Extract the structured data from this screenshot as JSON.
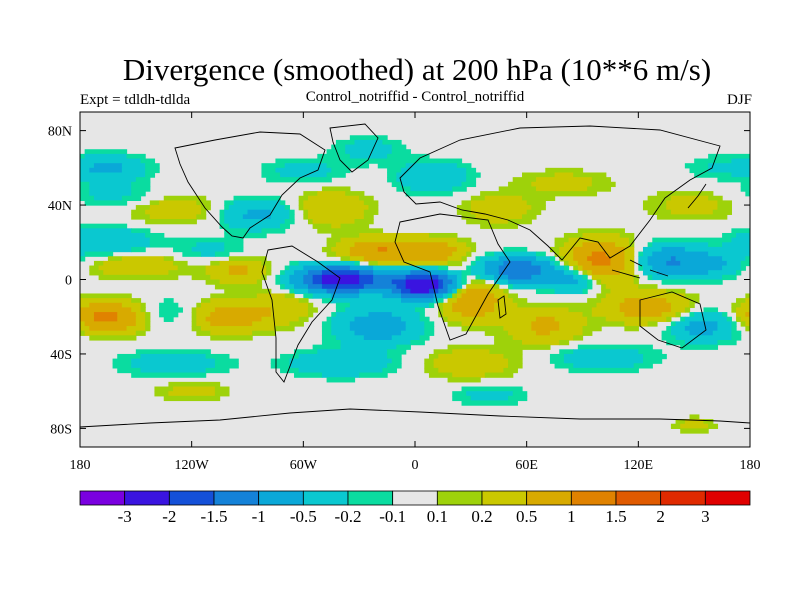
{
  "chart_data": {
    "type": "heatmap",
    "title": "Divergence (smoothed) at 200 hPa (10**6 m/s)",
    "left_label": "Expt = tdldh-tdlda",
    "center_label": "Control_notriffid - Control_notriffid",
    "right_label": "DJF",
    "xlim": [
      -180,
      180
    ],
    "ylim": [
      -90,
      90
    ],
    "x_ticks": [
      {
        "value": -180,
        "label": "180"
      },
      {
        "value": -120,
        "label": "120W"
      },
      {
        "value": -60,
        "label": "60W"
      },
      {
        "value": 0,
        "label": "0"
      },
      {
        "value": 60,
        "label": "60E"
      },
      {
        "value": 120,
        "label": "120E"
      },
      {
        "value": 180,
        "label": "180"
      }
    ],
    "y_ticks": [
      {
        "value": 80,
        "label": "80N"
      },
      {
        "value": 40,
        "label": "40N"
      },
      {
        "value": 0,
        "label": "0"
      },
      {
        "value": -40,
        "label": "40S"
      },
      {
        "value": -80,
        "label": "80S"
      }
    ],
    "colorbar": {
      "colors": [
        "#7a00e0",
        "#3a14e0",
        "#1450d8",
        "#1482d8",
        "#0aa8d8",
        "#0ac8d0",
        "#0adca0",
        "#e6e6e6",
        "#9ed20a",
        "#cac800",
        "#d8aa00",
        "#e08200",
        "#e05a00",
        "#e02a00",
        "#e00000"
      ],
      "levels": [
        "-3",
        "-2",
        "-1.5",
        "-1",
        "-0.5",
        "-0.2",
        "-0.1",
        "0.1",
        "0.2",
        "0.5",
        "1",
        "1.5",
        "2",
        "3"
      ]
    },
    "anomalies": [
      {
        "lon": -165,
        "lat": 60,
        "value": -0.6,
        "sx": 14,
        "sy": 5
      },
      {
        "lon": -160,
        "lat": 45,
        "value": -0.3,
        "sx": 20,
        "sy": 5
      },
      {
        "lon": -130,
        "lat": 38,
        "value": 0.4,
        "sx": 18,
        "sy": 6
      },
      {
        "lon": -85,
        "lat": 35,
        "value": -0.6,
        "sx": 15,
        "sy": 6
      },
      {
        "lon": -45,
        "lat": 38,
        "value": 0.5,
        "sx": 14,
        "sy": 7
      },
      {
        "lon": -60,
        "lat": 58,
        "value": -0.3,
        "sx": 16,
        "sy": 5
      },
      {
        "lon": -25,
        "lat": 70,
        "value": -0.3,
        "sx": 14,
        "sy": 5
      },
      {
        "lon": 10,
        "lat": 55,
        "value": -0.5,
        "sx": 14,
        "sy": 6
      },
      {
        "lon": 45,
        "lat": 38,
        "value": 0.4,
        "sx": 14,
        "sy": 6
      },
      {
        "lon": 80,
        "lat": 52,
        "value": 0.3,
        "sx": 18,
        "sy": 5
      },
      {
        "lon": 150,
        "lat": 40,
        "value": 0.3,
        "sx": 18,
        "sy": 6
      },
      {
        "lon": 160,
        "lat": 60,
        "value": -0.2,
        "sx": 12,
        "sy": 5
      },
      {
        "lon": -165,
        "lat": 20,
        "value": -0.5,
        "sx": 18,
        "sy": 6
      },
      {
        "lon": -150,
        "lat": 8,
        "value": 0.5,
        "sx": 18,
        "sy": 5
      },
      {
        "lon": -110,
        "lat": 15,
        "value": -0.3,
        "sx": 14,
        "sy": 5
      },
      {
        "lon": -95,
        "lat": 5,
        "value": 0.6,
        "sx": 12,
        "sy": 5
      },
      {
        "lon": -40,
        "lat": 0,
        "value": -2.5,
        "sx": 16,
        "sy": 5
      },
      {
        "lon": 5,
        "lat": -3,
        "value": -2.8,
        "sx": 12,
        "sy": 5
      },
      {
        "lon": -20,
        "lat": 15,
        "value": 1.0,
        "sx": 14,
        "sy": 5
      },
      {
        "lon": 10,
        "lat": 15,
        "value": 0.8,
        "sx": 12,
        "sy": 5
      },
      {
        "lon": 55,
        "lat": 5,
        "value": -1.5,
        "sx": 14,
        "sy": 5
      },
      {
        "lon": 85,
        "lat": 0,
        "value": -0.8,
        "sx": 10,
        "sy": 5
      },
      {
        "lon": 100,
        "lat": 10,
        "value": 1.2,
        "sx": 14,
        "sy": 8
      },
      {
        "lon": 135,
        "lat": 10,
        "value": -1.0,
        "sx": 14,
        "sy": 6
      },
      {
        "lon": 160,
        "lat": 8,
        "value": -0.5,
        "sx": 12,
        "sy": 5
      },
      {
        "lon": -165,
        "lat": -20,
        "value": 1.2,
        "sx": 14,
        "sy": 6
      },
      {
        "lon": -135,
        "lat": -18,
        "value": -0.3,
        "sx": 14,
        "sy": 6
      },
      {
        "lon": -100,
        "lat": -20,
        "value": 0.8,
        "sx": 14,
        "sy": 6
      },
      {
        "lon": -70,
        "lat": -15,
        "value": 0.4,
        "sx": 12,
        "sy": 7
      },
      {
        "lon": -20,
        "lat": -25,
        "value": -0.8,
        "sx": 16,
        "sy": 7
      },
      {
        "lon": 30,
        "lat": -10,
        "value": 1.0,
        "sx": 12,
        "sy": 8
      },
      {
        "lon": 70,
        "lat": -25,
        "value": 0.6,
        "sx": 14,
        "sy": 7
      },
      {
        "lon": 125,
        "lat": -15,
        "value": 0.8,
        "sx": 16,
        "sy": 6
      },
      {
        "lon": 155,
        "lat": -25,
        "value": -0.7,
        "sx": 14,
        "sy": 6
      },
      {
        "lon": -130,
        "lat": -45,
        "value": -0.4,
        "sx": 20,
        "sy": 5
      },
      {
        "lon": -40,
        "lat": -45,
        "value": -0.5,
        "sx": 20,
        "sy": 5
      },
      {
        "lon": 30,
        "lat": -45,
        "value": 0.4,
        "sx": 18,
        "sy": 6
      },
      {
        "lon": 100,
        "lat": -42,
        "value": -0.4,
        "sx": 20,
        "sy": 5
      },
      {
        "lon": -120,
        "lat": -60,
        "value": 0.3,
        "sx": 14,
        "sy": 4
      },
      {
        "lon": 40,
        "lat": -62,
        "value": -0.3,
        "sx": 14,
        "sy": 4
      },
      {
        "lon": 150,
        "lat": -78,
        "value": 0.3,
        "sx": 8,
        "sy": 3
      }
    ]
  }
}
